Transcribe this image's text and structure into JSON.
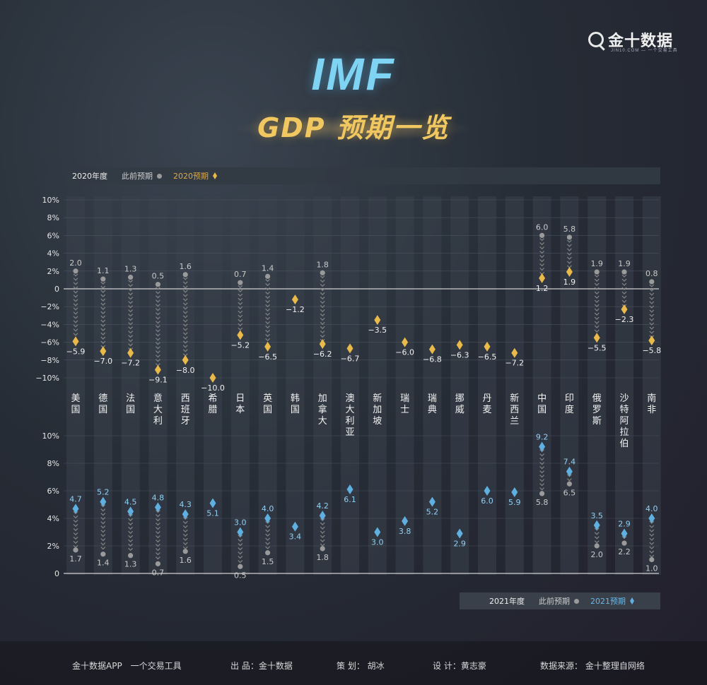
{
  "brand": {
    "logo_text": "金十数据",
    "logo_sub": "JIN10.COM — 一个交易工具"
  },
  "title": {
    "main": "IMF",
    "sub": "GDP 预期一览"
  },
  "legend_2020": {
    "year": "2020年度",
    "prev": "此前预期",
    "new": "2020预期"
  },
  "legend_2021": {
    "year": "2021年度",
    "prev": "此前预期",
    "new": "2021预期"
  },
  "colors": {
    "gold": "#e9b949",
    "blue": "#5fb0e0",
    "grey": "#9a9a9a",
    "column": "#3b424c"
  },
  "chart_data": {
    "type": "scatter",
    "categories": [
      "美国",
      "德国",
      "法国",
      "意大利",
      "西班牙",
      "希腊",
      "日本",
      "英国",
      "韩国",
      "加拿大",
      "澳大利亚",
      "新加坡",
      "瑞士",
      "瑞典",
      "挪威",
      "丹麦",
      "新西兰",
      "中国",
      "印度",
      "俄罗斯",
      "沙特阿拉伯",
      "南非"
    ],
    "panel_2020": {
      "yticks": [
        "10%",
        "8%",
        "6%",
        "4%",
        "2%",
        "0",
        "−2%",
        "−4%",
        "−6%",
        "−8%",
        "−10%"
      ],
      "ylim": [
        -10,
        10
      ],
      "series": [
        {
          "name": "此前预期",
          "values": [
            2.0,
            1.1,
            1.3,
            0.5,
            1.6,
            null,
            0.7,
            1.4,
            null,
            1.8,
            null,
            null,
            null,
            null,
            null,
            null,
            null,
            6.0,
            5.8,
            1.9,
            1.9,
            0.8
          ]
        },
        {
          "name": "2020预期",
          "values": [
            -5.9,
            -7.0,
            -7.2,
            -9.1,
            -8.0,
            -10.0,
            -5.2,
            -6.5,
            -1.2,
            -6.2,
            -6.7,
            -3.5,
            -6.0,
            -6.8,
            -6.3,
            -6.5,
            -7.2,
            1.2,
            1.9,
            -5.5,
            -2.3,
            -5.8
          ]
        }
      ],
      "prev_labels": [
        "2.0",
        "1.1",
        "1.3",
        "0.5",
        "1.6",
        "",
        "0.7",
        "1.4",
        "",
        "1.8",
        "",
        "",
        "",
        "",
        "",
        "",
        "",
        "6.0",
        "5.8",
        "1.9",
        "1.9",
        "0.8"
      ],
      "new_labels": [
        "−5.9",
        "−7.0",
        "−7.2",
        "−9.1",
        "−8.0",
        "−10.0",
        "−5.2",
        "−6.5",
        "−1.2",
        "−6.2",
        "−6.7",
        "−3.5",
        "−6.0",
        "−6.8",
        "−6.3",
        "−6.5",
        "−7.2",
        "1.2",
        "1.9",
        "−5.5",
        "−2.3",
        "−5.8"
      ]
    },
    "panel_2021": {
      "yticks": [
        "10%",
        "8%",
        "6%",
        "4%",
        "2%",
        "0"
      ],
      "ylim": [
        0,
        10
      ],
      "series": [
        {
          "name": "此前预期",
          "values": [
            1.7,
            1.4,
            1.3,
            0.7,
            1.6,
            null,
            0.5,
            1.5,
            null,
            1.8,
            null,
            null,
            null,
            null,
            null,
            null,
            null,
            5.8,
            6.5,
            2.0,
            2.2,
            1.0
          ]
        },
        {
          "name": "2021预期",
          "values": [
            4.7,
            5.2,
            4.5,
            4.8,
            4.3,
            5.1,
            3.0,
            4.0,
            3.4,
            4.2,
            6.1,
            3.0,
            3.8,
            5.2,
            2.9,
            6.0,
            5.9,
            9.2,
            7.4,
            3.5,
            2.9,
            4.0
          ]
        }
      ],
      "prev_labels": [
        "1.7",
        "1.4",
        "1.3",
        "0.7",
        "1.6",
        "",
        "0.5",
        "1.5",
        "",
        "1.8",
        "",
        "",
        "",
        "",
        "",
        "",
        "",
        "5.8",
        "6.5",
        "2.0",
        "2.2",
        "1.0"
      ],
      "new_labels": [
        "4.7",
        "5.2",
        "4.5",
        "4.8",
        "4.3",
        "5.1",
        "3.0",
        "4.0",
        "3.4",
        "4.2",
        "6.1",
        "3.0",
        "3.8",
        "5.2",
        "2.9",
        "6.0",
        "5.9",
        "9.2",
        "7.4",
        "3.5",
        "2.9",
        "4.0"
      ]
    }
  },
  "footer": {
    "app": "金十数据APP　一个交易工具",
    "producer": "出 品：金十数据",
    "planner": "策 划： 胡冰",
    "designer": "设 计：黄志豪",
    "source": "数据来源： 金十整理自网络"
  }
}
